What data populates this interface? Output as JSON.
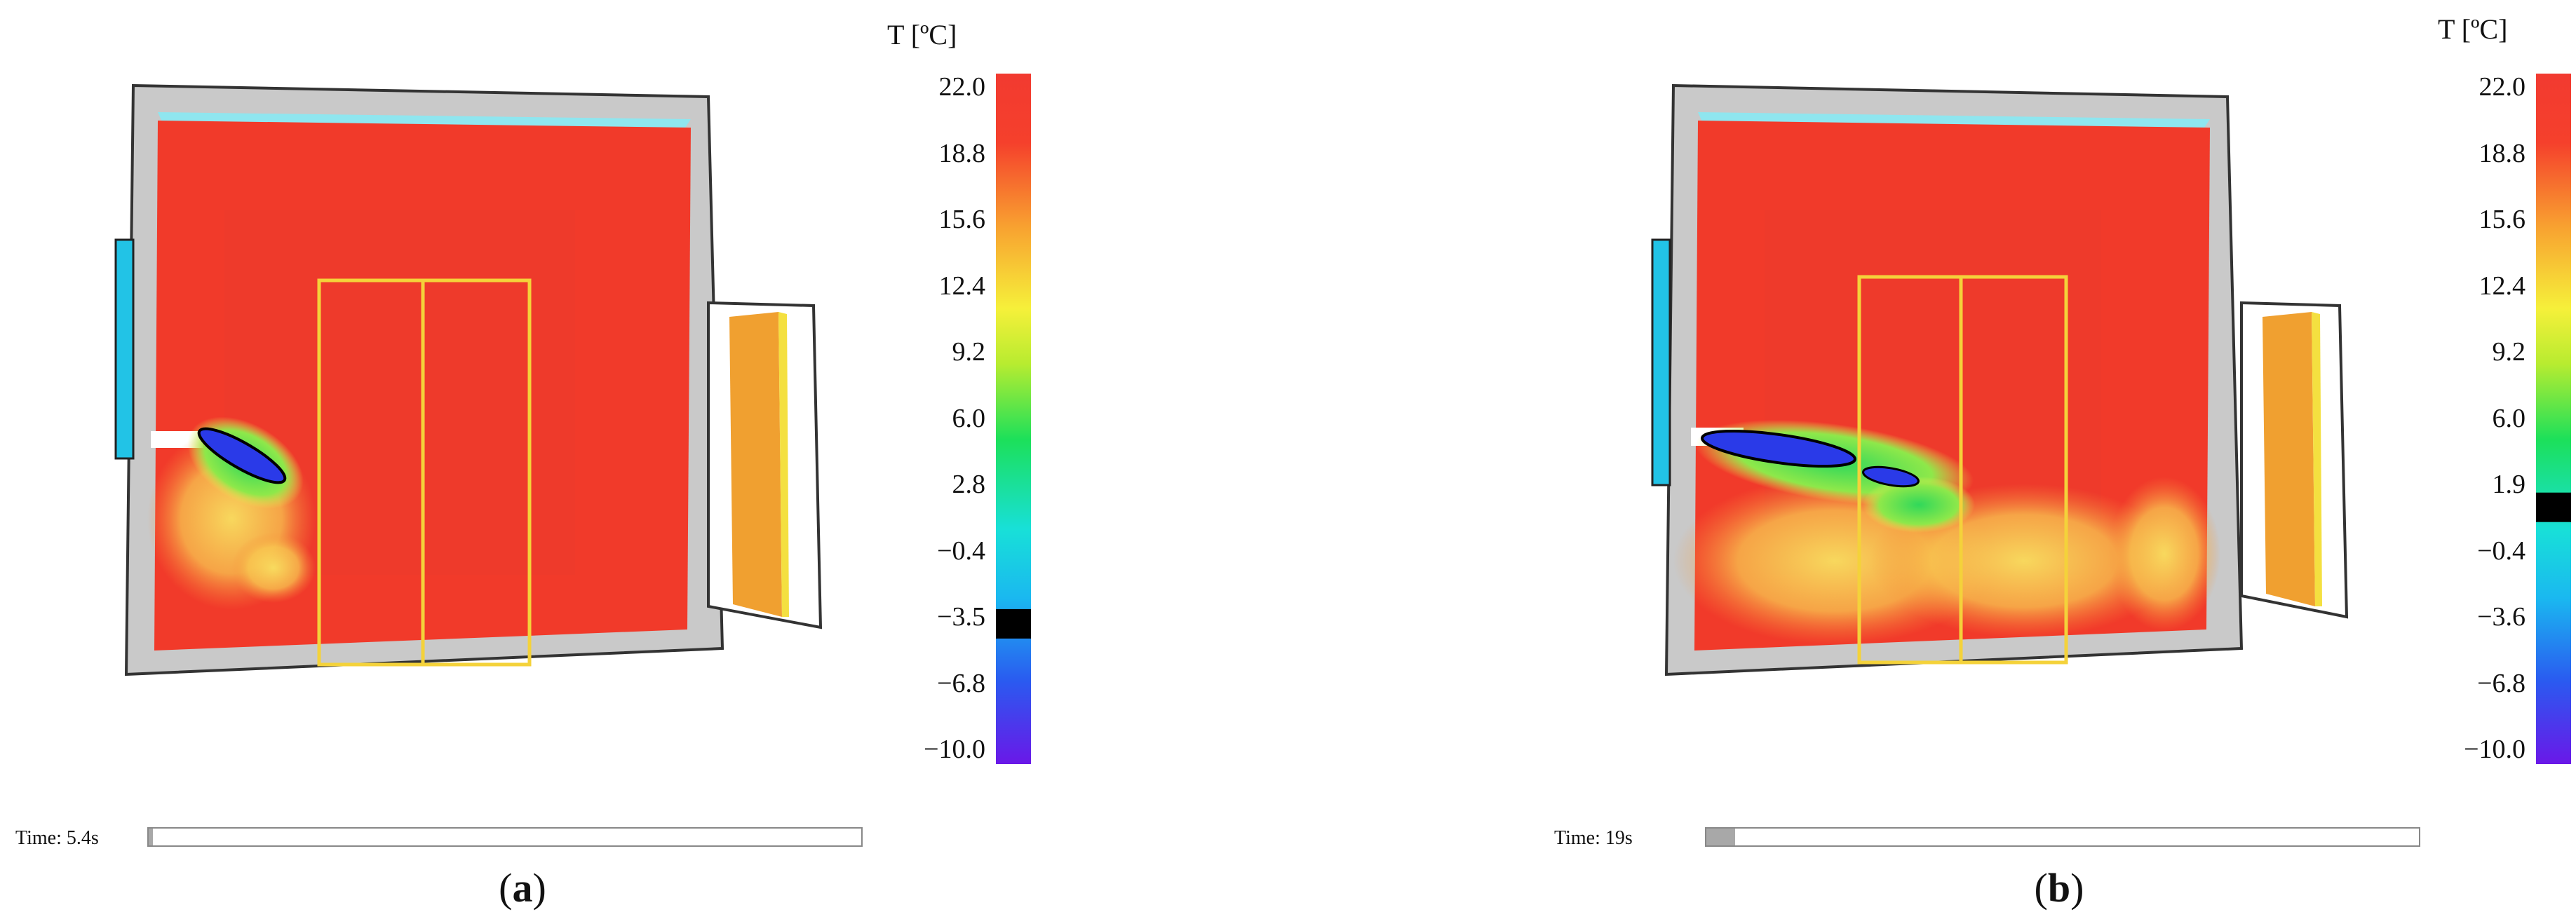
{
  "panels": [
    {
      "id": "a",
      "caption_letter": "a",
      "colorbar": {
        "title": "T [ºC]",
        "min": -10.0,
        "max": 22.0,
        "ticks": [
          "22.0",
          "18.8",
          "15.6",
          "12.4",
          "9.2",
          "6.0",
          "2.8",
          "−0.4",
          "−3.5",
          "−6.8",
          "−10.0"
        ],
        "marker_value": -3.5,
        "marker_color": "#000000"
      },
      "time": {
        "label": "Time: 5.4s",
        "progress": 0.005
      }
    },
    {
      "id": "b",
      "caption_letter": "b",
      "colorbar": {
        "title": "T [ºC]",
        "min": -10.0,
        "max": 22.0,
        "ticks": [
          "22.0",
          "18.8",
          "15.6",
          "12.4",
          "9.2",
          "6.0",
          "1.9",
          "−0.4",
          "−3.6",
          "−6.8",
          "−10.0"
        ],
        "marker_value": 1.9,
        "marker_color": "#000000"
      },
      "time": {
        "label": "Time: 19s",
        "progress": 0.04
      }
    }
  ],
  "colors": {
    "frame": "#cfcfcf",
    "floor": "#f13a2a",
    "door": "#f4d23a",
    "window": "#22c3e6",
    "heater": "#f0a030"
  }
}
